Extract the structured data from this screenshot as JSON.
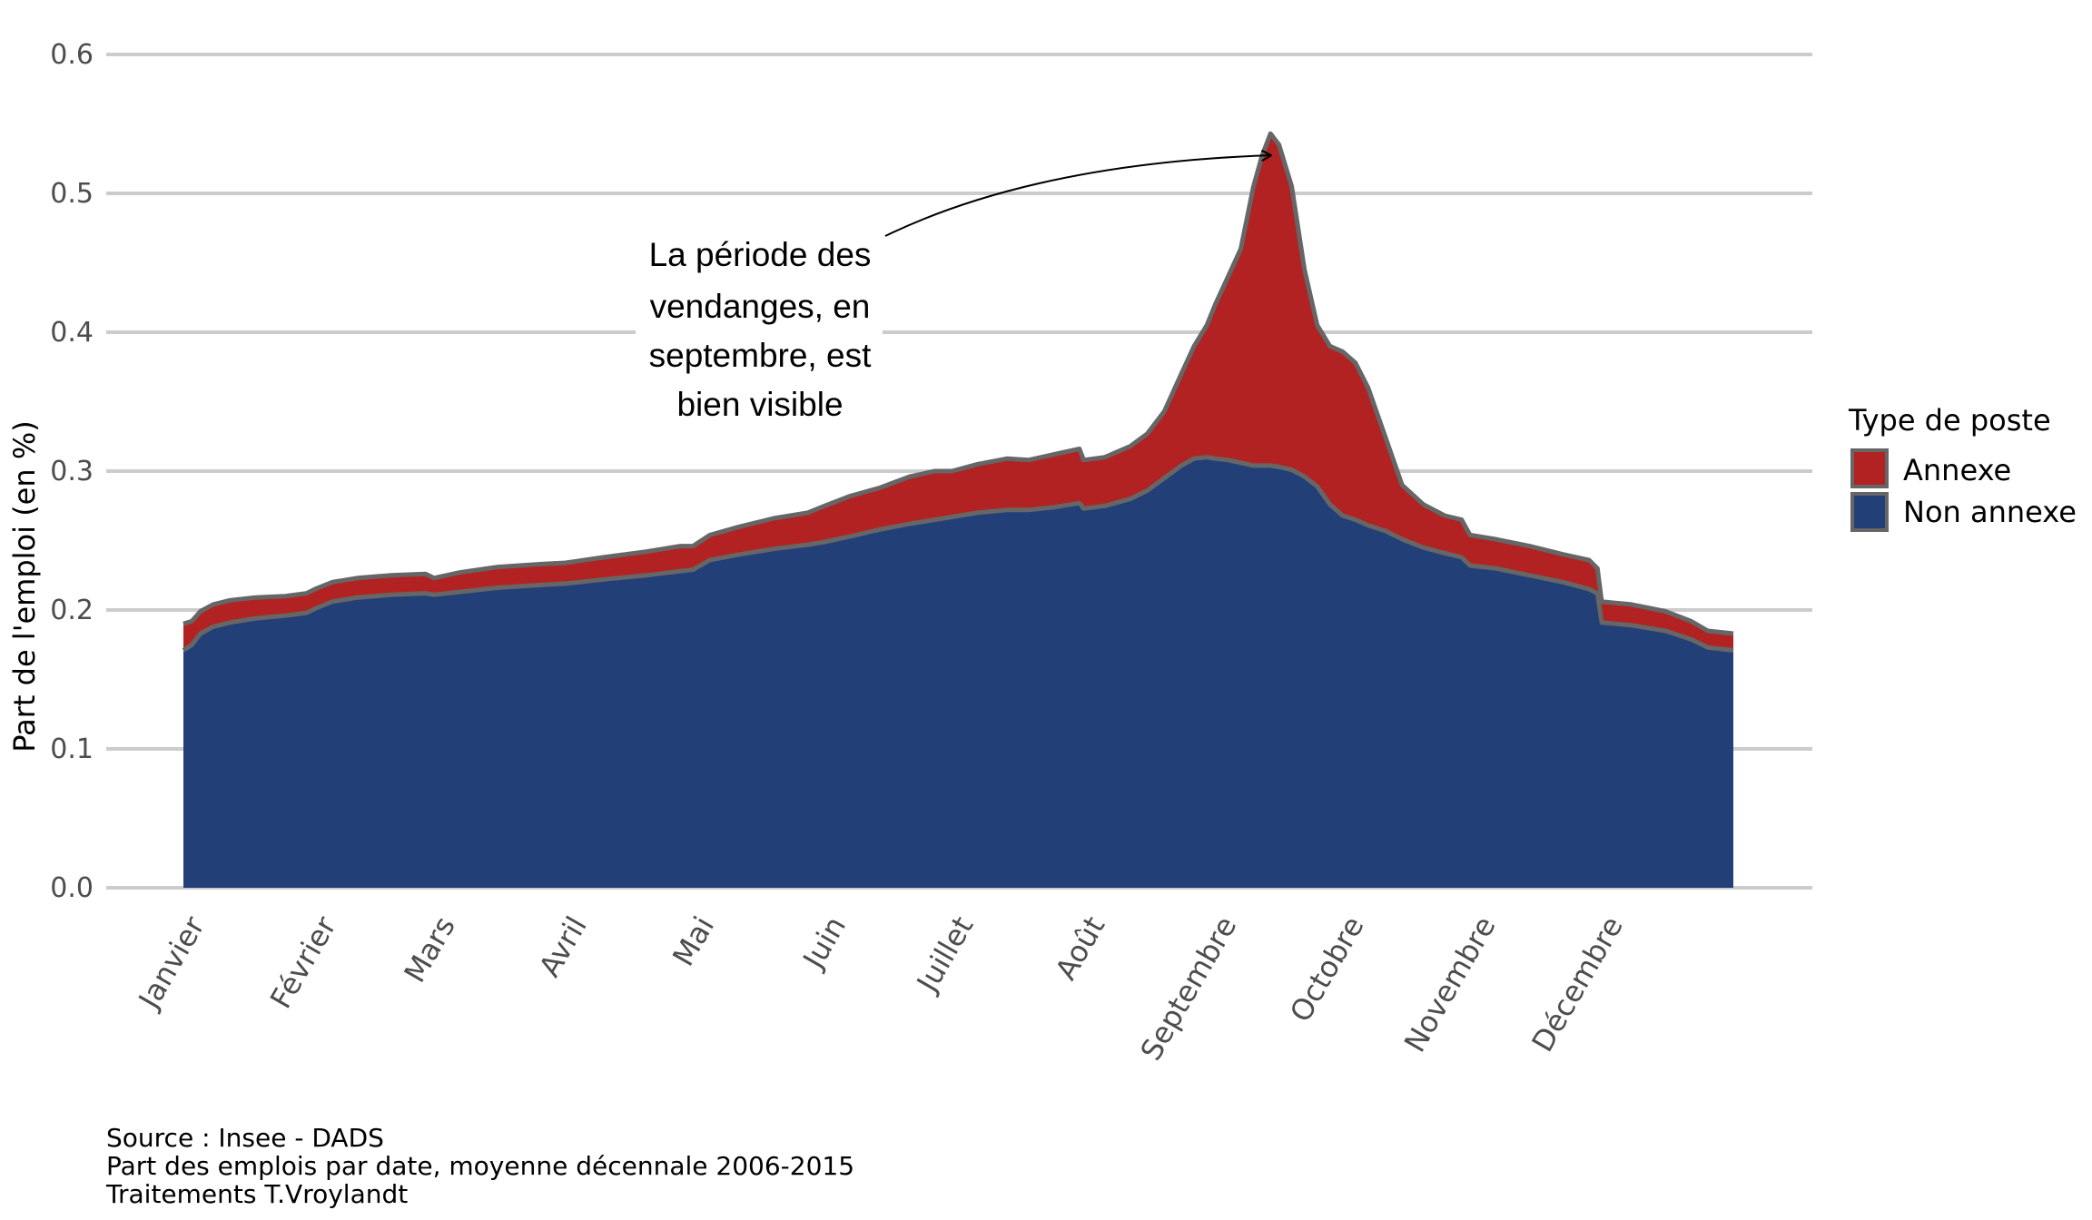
{
  "chart_data": {
    "type": "area",
    "stacked": true,
    "title": "",
    "xlabel": "",
    "ylabel": "Part de l'emploi (en %)",
    "ylim": [
      0,
      0.6
    ],
    "yticks": [
      0.0,
      0.1,
      0.2,
      0.3,
      0.4,
      0.5,
      0.6
    ],
    "ytick_labels": [
      "0.0",
      "0.1",
      "0.2",
      "0.3",
      "0.4",
      "0.5",
      "0.6"
    ],
    "x_domain": [
      1,
      366
    ],
    "xticks": [
      {
        "label": "Janvier",
        "day": 1
      },
      {
        "label": "Février",
        "day": 32
      },
      {
        "label": "Mars",
        "day": 60
      },
      {
        "label": "Avril",
        "day": 91
      },
      {
        "label": "Mai",
        "day": 121
      },
      {
        "label": "Juin",
        "day": 152
      },
      {
        "label": "Juillet",
        "day": 182
      },
      {
        "label": "Août",
        "day": 213
      },
      {
        "label": "Septembre",
        "day": 244
      },
      {
        "label": "Octobre",
        "day": 274
      },
      {
        "label": "Novembre",
        "day": 305
      },
      {
        "label": "Décembre",
        "day": 335
      }
    ],
    "grid": true,
    "legend_position": "right",
    "legend_title": "Type de poste",
    "series": [
      {
        "name": "Annexe",
        "color": "#B22222"
      },
      {
        "name": "Non annexe",
        "color": "#223F78"
      }
    ],
    "outline_color": "#666666",
    "points": [
      {
        "day": 1,
        "non_annexe": 0.171,
        "total": 0.19
      },
      {
        "day": 3,
        "non_annexe": 0.175,
        "total": 0.192
      },
      {
        "day": 5,
        "non_annexe": 0.183,
        "total": 0.199
      },
      {
        "day": 8,
        "non_annexe": 0.188,
        "total": 0.204
      },
      {
        "day": 12,
        "non_annexe": 0.191,
        "total": 0.207
      },
      {
        "day": 18,
        "non_annexe": 0.194,
        "total": 0.209
      },
      {
        "day": 25,
        "non_annexe": 0.196,
        "total": 0.21
      },
      {
        "day": 30,
        "non_annexe": 0.198,
        "total": 0.212
      },
      {
        "day": 32,
        "non_annexe": 0.201,
        "total": 0.215
      },
      {
        "day": 36,
        "non_annexe": 0.206,
        "total": 0.22
      },
      {
        "day": 42,
        "non_annexe": 0.209,
        "total": 0.223
      },
      {
        "day": 50,
        "non_annexe": 0.211,
        "total": 0.225
      },
      {
        "day": 58,
        "non_annexe": 0.212,
        "total": 0.226
      },
      {
        "day": 60,
        "non_annexe": 0.211,
        "total": 0.223
      },
      {
        "day": 66,
        "non_annexe": 0.213,
        "total": 0.227
      },
      {
        "day": 75,
        "non_annexe": 0.216,
        "total": 0.231
      },
      {
        "day": 85,
        "non_annexe": 0.218,
        "total": 0.233
      },
      {
        "day": 91,
        "non_annexe": 0.219,
        "total": 0.234
      },
      {
        "day": 100,
        "non_annexe": 0.222,
        "total": 0.238
      },
      {
        "day": 110,
        "non_annexe": 0.225,
        "total": 0.242
      },
      {
        "day": 118,
        "non_annexe": 0.228,
        "total": 0.246
      },
      {
        "day": 121,
        "non_annexe": 0.229,
        "total": 0.246
      },
      {
        "day": 125,
        "non_annexe": 0.236,
        "total": 0.254
      },
      {
        "day": 132,
        "non_annexe": 0.24,
        "total": 0.26
      },
      {
        "day": 140,
        "non_annexe": 0.244,
        "total": 0.266
      },
      {
        "day": 148,
        "non_annexe": 0.247,
        "total": 0.27
      },
      {
        "day": 152,
        "non_annexe": 0.249,
        "total": 0.275
      },
      {
        "day": 158,
        "non_annexe": 0.253,
        "total": 0.282
      },
      {
        "day": 165,
        "non_annexe": 0.258,
        "total": 0.288
      },
      {
        "day": 172,
        "non_annexe": 0.262,
        "total": 0.296
      },
      {
        "day": 178,
        "non_annexe": 0.265,
        "total": 0.3
      },
      {
        "day": 182,
        "non_annexe": 0.267,
        "total": 0.3
      },
      {
        "day": 188,
        "non_annexe": 0.27,
        "total": 0.305
      },
      {
        "day": 195,
        "non_annexe": 0.272,
        "total": 0.309
      },
      {
        "day": 200,
        "non_annexe": 0.272,
        "total": 0.308
      },
      {
        "day": 206,
        "non_annexe": 0.274,
        "total": 0.312
      },
      {
        "day": 212,
        "non_annexe": 0.277,
        "total": 0.316
      },
      {
        "day": 213,
        "non_annexe": 0.273,
        "total": 0.308
      },
      {
        "day": 218,
        "non_annexe": 0.275,
        "total": 0.31
      },
      {
        "day": 224,
        "non_annexe": 0.28,
        "total": 0.318
      },
      {
        "day": 228,
        "non_annexe": 0.286,
        "total": 0.327
      },
      {
        "day": 232,
        "non_annexe": 0.295,
        "total": 0.343
      },
      {
        "day": 236,
        "non_annexe": 0.304,
        "total": 0.37
      },
      {
        "day": 239,
        "non_annexe": 0.309,
        "total": 0.39
      },
      {
        "day": 242,
        "non_annexe": 0.31,
        "total": 0.405
      },
      {
        "day": 244,
        "non_annexe": 0.309,
        "total": 0.42
      },
      {
        "day": 247,
        "non_annexe": 0.308,
        "total": 0.44
      },
      {
        "day": 250,
        "non_annexe": 0.306,
        "total": 0.46
      },
      {
        "day": 253,
        "non_annexe": 0.304,
        "total": 0.505
      },
      {
        "day": 255,
        "non_annexe": 0.304,
        "total": 0.527
      },
      {
        "day": 257,
        "non_annexe": 0.304,
        "total": 0.543
      },
      {
        "day": 259,
        "non_annexe": 0.303,
        "total": 0.535
      },
      {
        "day": 262,
        "non_annexe": 0.301,
        "total": 0.505
      },
      {
        "day": 265,
        "non_annexe": 0.296,
        "total": 0.445
      },
      {
        "day": 268,
        "non_annexe": 0.289,
        "total": 0.405
      },
      {
        "day": 271,
        "non_annexe": 0.276,
        "total": 0.39
      },
      {
        "day": 274,
        "non_annexe": 0.268,
        "total": 0.386
      },
      {
        "day": 277,
        "non_annexe": 0.265,
        "total": 0.378
      },
      {
        "day": 280,
        "non_annexe": 0.261,
        "total": 0.36
      },
      {
        "day": 284,
        "non_annexe": 0.257,
        "total": 0.325
      },
      {
        "day": 288,
        "non_annexe": 0.251,
        "total": 0.29
      },
      {
        "day": 293,
        "non_annexe": 0.245,
        "total": 0.276
      },
      {
        "day": 298,
        "non_annexe": 0.241,
        "total": 0.268
      },
      {
        "day": 302,
        "non_annexe": 0.238,
        "total": 0.265
      },
      {
        "day": 304,
        "non_annexe": 0.232,
        "total": 0.254
      },
      {
        "day": 310,
        "non_annexe": 0.23,
        "total": 0.251
      },
      {
        "day": 318,
        "non_annexe": 0.225,
        "total": 0.246
      },
      {
        "day": 326,
        "non_annexe": 0.22,
        "total": 0.24
      },
      {
        "day": 332,
        "non_annexe": 0.215,
        "total": 0.236
      },
      {
        "day": 334,
        "non_annexe": 0.212,
        "total": 0.23
      },
      {
        "day": 335,
        "non_annexe": 0.191,
        "total": 0.206
      },
      {
        "day": 342,
        "non_annexe": 0.189,
        "total": 0.204
      },
      {
        "day": 350,
        "non_annexe": 0.185,
        "total": 0.199
      },
      {
        "day": 356,
        "non_annexe": 0.179,
        "total": 0.192
      },
      {
        "day": 360,
        "non_annexe": 0.173,
        "total": 0.185
      },
      {
        "day": 366,
        "non_annexe": 0.171,
        "total": 0.183
      }
    ],
    "annotation": {
      "lines": [
        "La période des",
        "vendanges, en",
        "septembre, est",
        "bien visible"
      ],
      "arrow_target": {
        "day": 257,
        "value": 0.53
      }
    }
  },
  "caption": {
    "lines": [
      "Source : Insee - DADS",
      "Part des emplois par date, moyenne décennale 2006-2015",
      "Traitements T.Vroylandt"
    ]
  }
}
